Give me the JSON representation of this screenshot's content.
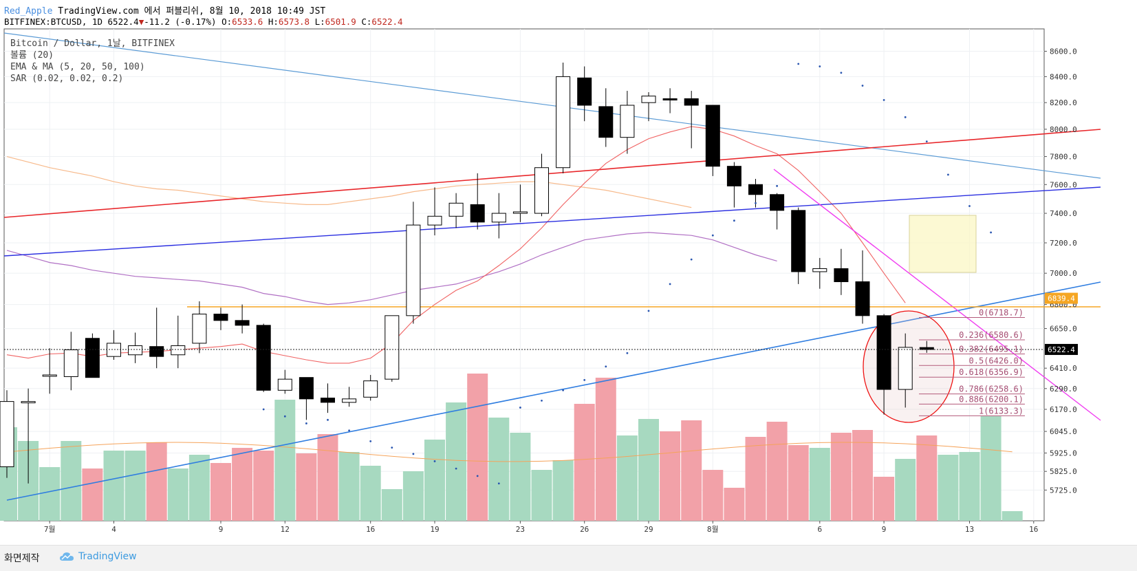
{
  "header": {
    "user": "Red_Apple",
    "publish": "TradingView.com 에서 퍼블리쉬, 8월 10, 2018 10:49 JST",
    "symbol": "BITFINEX:BTCUSD, 1D",
    "last": "6522.4",
    "change": "-11.2 (-0.17%)",
    "o_label": "O:",
    "o": "6533.6",
    "h_label": "H:",
    "h": "6573.8",
    "l_label": "L:",
    "l": "6501.9",
    "c_label": "C:",
    "c": "6522.4",
    "down_color": "#c0271e"
  },
  "legend": [
    "Bitcoin / Dollar, 1날, BITFINEX",
    "볼륨 (20)",
    "EMA & MA (5, 20, 50, 100)",
    "SAR (0.02, 0.02, 0.2)"
  ],
  "footer": {
    "made_by": "화면제작",
    "brand": "TradingView"
  },
  "chart_data": {
    "type": "candlestick",
    "y_scale": "log",
    "ylim": [
      5650,
      8680
    ],
    "price_ticks": [
      "8600.0",
      "8400.0",
      "8200.0",
      "8000.0",
      "7800.0",
      "7600.0",
      "7400.0",
      "7200.0",
      "7000.0",
      "6800.0",
      "6650.0",
      "6410.0",
      "6290.0",
      "6170.0",
      "6045.0",
      "5925.0",
      "5825.0",
      "5725.0"
    ],
    "price_tick_values": [
      8600,
      8400,
      8200,
      8000,
      7800,
      7600,
      7400,
      7200,
      7000,
      6800,
      6650,
      6410,
      6290,
      6170,
      6045,
      5925,
      5825,
      5725
    ],
    "x_ticks": [
      {
        "label": "7월",
        "index": 2
      },
      {
        "label": "4",
        "index": 5
      },
      {
        "label": "9",
        "index": 10
      },
      {
        "label": "12",
        "index": 13
      },
      {
        "label": "16",
        "index": 17
      },
      {
        "label": "19",
        "index": 20
      },
      {
        "label": "23",
        "index": 24
      },
      {
        "label": "26",
        "index": 27
      },
      {
        "label": "29",
        "index": 30
      },
      {
        "label": "8월",
        "index": 33
      },
      {
        "label": "6",
        "index": 38
      },
      {
        "label": "9",
        "index": 41
      },
      {
        "label": "13",
        "index": 45
      },
      {
        "label": "16",
        "index": 48
      }
    ],
    "candles": [
      {
        "o": 5850,
        "h": 6280,
        "l": 5790,
        "c": 6215
      },
      {
        "o": 6215,
        "h": 6290,
        "l": 5760,
        "c": 6215
      },
      {
        "o": 6370,
        "h": 6530,
        "l": 6260,
        "c": 6370
      },
      {
        "o": 6360,
        "h": 6630,
        "l": 6280,
        "c": 6520
      },
      {
        "o": 6590,
        "h": 6620,
        "l": 6380,
        "c": 6355
      },
      {
        "o": 6480,
        "h": 6640,
        "l": 6460,
        "c": 6560
      },
      {
        "o": 6490,
        "h": 6625,
        "l": 6440,
        "c": 6545
      },
      {
        "o": 6540,
        "h": 6780,
        "l": 6410,
        "c": 6480
      },
      {
        "o": 6490,
        "h": 6730,
        "l": 6410,
        "c": 6545
      },
      {
        "o": 6560,
        "h": 6820,
        "l": 6500,
        "c": 6740
      },
      {
        "o": 6740,
        "h": 6780,
        "l": 6640,
        "c": 6700
      },
      {
        "o": 6700,
        "h": 6800,
        "l": 6620,
        "c": 6670
      },
      {
        "o": 6670,
        "h": 6680,
        "l": 6270,
        "c": 6280
      },
      {
        "o": 6280,
        "h": 6400,
        "l": 6260,
        "c": 6345
      },
      {
        "o": 6355,
        "h": 6355,
        "l": 6110,
        "c": 6230
      },
      {
        "o": 6235,
        "h": 6320,
        "l": 6150,
        "c": 6210
      },
      {
        "o": 6210,
        "h": 6300,
        "l": 6185,
        "c": 6230
      },
      {
        "o": 6240,
        "h": 6370,
        "l": 6220,
        "c": 6335
      },
      {
        "o": 6345,
        "h": 6730,
        "l": 6330,
        "c": 6730
      },
      {
        "o": 6730,
        "h": 7480,
        "l": 6680,
        "c": 7320
      },
      {
        "o": 7320,
        "h": 7580,
        "l": 7250,
        "c": 7380
      },
      {
        "o": 7380,
        "h": 7540,
        "l": 7300,
        "c": 7470
      },
      {
        "o": 7460,
        "h": 7680,
        "l": 7290,
        "c": 7340
      },
      {
        "o": 7340,
        "h": 7540,
        "l": 7230,
        "c": 7400
      },
      {
        "o": 7400,
        "h": 7600,
        "l": 7340,
        "c": 7410
      },
      {
        "o": 7400,
        "h": 7820,
        "l": 7380,
        "c": 7720
      },
      {
        "o": 7720,
        "h": 8510,
        "l": 7680,
        "c": 8400
      },
      {
        "o": 8390,
        "h": 8480,
        "l": 8060,
        "c": 8180
      },
      {
        "o": 8170,
        "h": 8310,
        "l": 7870,
        "c": 7940
      },
      {
        "o": 7940,
        "h": 8290,
        "l": 7820,
        "c": 8180
      },
      {
        "o": 8200,
        "h": 8280,
        "l": 8060,
        "c": 8250
      },
      {
        "o": 8230,
        "h": 8310,
        "l": 8120,
        "c": 8220
      },
      {
        "o": 8230,
        "h": 8290,
        "l": 7860,
        "c": 8180
      },
      {
        "o": 8180,
        "h": 8180,
        "l": 7660,
        "c": 7730
      },
      {
        "o": 7730,
        "h": 7760,
        "l": 7440,
        "c": 7590
      },
      {
        "o": 7600,
        "h": 7640,
        "l": 7440,
        "c": 7530
      },
      {
        "o": 7530,
        "h": 7540,
        "l": 7290,
        "c": 7420
      },
      {
        "o": 7420,
        "h": 7440,
        "l": 6930,
        "c": 7010
      },
      {
        "o": 7010,
        "h": 7100,
        "l": 6900,
        "c": 7030
      },
      {
        "o": 7030,
        "h": 7160,
        "l": 6860,
        "c": 6945
      },
      {
        "o": 6945,
        "h": 7150,
        "l": 6680,
        "c": 6730
      },
      {
        "o": 6730,
        "h": 6740,
        "l": 6140,
        "c": 6285
      },
      {
        "o": 6285,
        "h": 6620,
        "l": 6180,
        "c": 6535
      },
      {
        "o": 6534,
        "h": 6574,
        "l": 6502,
        "c": 6522
      }
    ],
    "volume": [
      0.68,
      0.58,
      0.39,
      0.58,
      0.38,
      0.51,
      0.51,
      0.57,
      0.38,
      0.48,
      0.42,
      0.53,
      0.51,
      0.88,
      0.49,
      0.63,
      0.5,
      0.4,
      0.23,
      0.36,
      0.59,
      0.86,
      1.07,
      0.75,
      0.64,
      0.37,
      0.44,
      0.85,
      1.04,
      0.62,
      0.74,
      0.65,
      0.73,
      0.37,
      0.24,
      0.61,
      0.72,
      0.55,
      0.53,
      0.64,
      0.66,
      0.32,
      0.45,
      0.62,
      0.48,
      0.5,
      0.76,
      0.07
    ],
    "current_price": "6522.4",
    "level_6839": "6839.4",
    "fib_levels": [
      {
        "label": "0(6718.7)",
        "value": 6718.7
      },
      {
        "label": "0.236(6580.6)",
        "value": 6580.6
      },
      {
        "label": "0.382(6495.1)",
        "value": 6495.1
      },
      {
        "label": "0.5(6426.0)",
        "value": 6426.0
      },
      {
        "label": "0.618(6356.9)",
        "value": 6356.9
      },
      {
        "label": "0.786(6258.6)",
        "value": 6258.6
      },
      {
        "label": "0.886(6200.1)",
        "value": 6200.1
      },
      {
        "label": "1(6133.3)",
        "value": 6133.3
      }
    ],
    "ema_short": [
      6490,
      6470,
      6495,
      6500,
      6480,
      6500,
      6505,
      6510,
      6520,
      6530,
      6540,
      6555,
      6510,
      6485,
      6460,
      6440,
      6440,
      6470,
      6560,
      6700,
      6800,
      6890,
      6950,
      7050,
      7160,
      7300,
      7460,
      7610,
      7750,
      7850,
      7930,
      7980,
      8020,
      8000,
      7950,
      7880,
      7820,
      7700,
      7550,
      7400,
      7200,
      7000,
      6810
    ],
    "ema_mid": [
      7150,
      7110,
      7070,
      7050,
      7020,
      7000,
      6980,
      6970,
      6960,
      6950,
      6930,
      6910,
      6870,
      6850,
      6820,
      6800,
      6810,
      6830,
      6860,
      6890,
      6910,
      6930,
      6970,
      7010,
      7060,
      7120,
      7170,
      7220,
      7240,
      7260,
      7270,
      7260,
      7250,
      7220,
      7170,
      7120,
      7080
    ],
    "ma_long": [
      7800,
      7760,
      7720,
      7690,
      7660,
      7620,
      7590,
      7570,
      7560,
      7540,
      7520,
      7500,
      7480,
      7470,
      7460,
      7460,
      7480,
      7500,
      7520,
      7550,
      7570,
      7590,
      7600,
      7610,
      7620,
      7620,
      7600,
      7580,
      7560,
      7530,
      7500,
      7470,
      7440
    ],
    "sar": [
      {
        "i": 12,
        "v": 6170
      },
      {
        "i": 13,
        "v": 6130
      },
      {
        "i": 14,
        "v": 6090
      },
      {
        "i": 15,
        "v": 6110
      },
      {
        "i": 16,
        "v": 6050
      },
      {
        "i": 17,
        "v": 5990
      },
      {
        "i": 18,
        "v": 5955
      },
      {
        "i": 19,
        "v": 5920
      },
      {
        "i": 20,
        "v": 5880
      },
      {
        "i": 21,
        "v": 5840
      },
      {
        "i": 22,
        "v": 5800
      },
      {
        "i": 23,
        "v": 5760
      },
      {
        "i": 24,
        "v": 6180
      },
      {
        "i": 25,
        "v": 6220
      },
      {
        "i": 26,
        "v": 6280
      },
      {
        "i": 27,
        "v": 6340
      },
      {
        "i": 28,
        "v": 6420
      },
      {
        "i": 29,
        "v": 6500
      },
      {
        "i": 30,
        "v": 6760
      },
      {
        "i": 31,
        "v": 6930
      },
      {
        "i": 32,
        "v": 7090
      },
      {
        "i": 33,
        "v": 7250
      },
      {
        "i": 34,
        "v": 7350
      },
      {
        "i": 35,
        "v": 7470
      },
      {
        "i": 36,
        "v": 7590
      },
      {
        "i": 37,
        "v": 8500
      },
      {
        "i": 38,
        "v": 8480
      },
      {
        "i": 39,
        "v": 8430
      },
      {
        "i": 40,
        "v": 8330
      },
      {
        "i": 41,
        "v": 8220
      },
      {
        "i": 42,
        "v": 8090
      },
      {
        "i": 43,
        "v": 7910
      },
      {
        "i": 44,
        "v": 7670
      },
      {
        "i": 45,
        "v": 7450
      },
      {
        "i": 46,
        "v": 7270
      }
    ]
  }
}
